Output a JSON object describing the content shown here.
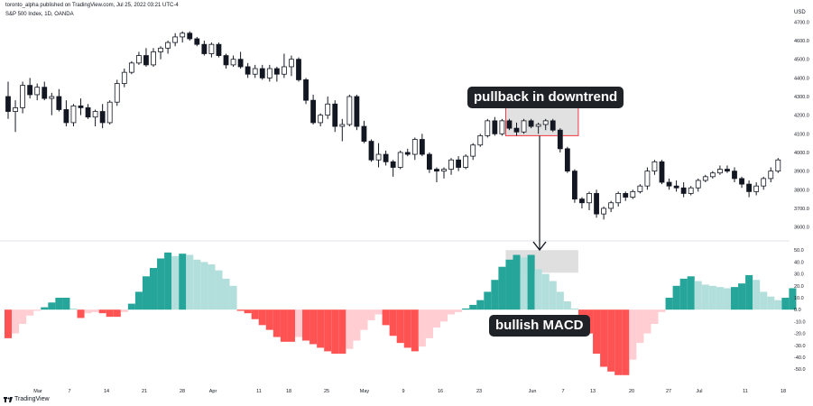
{
  "header": {
    "published": "toronto_alpha published on TradingView.com, Jul 25, 2022 03:21 UTC-4",
    "symbol": "S&P 500 Index, 1D, OANDA",
    "currency": "USD"
  },
  "annotations": {
    "pullback": "pullback in downtrend",
    "macd": "bullish MACD"
  },
  "footer": {
    "brand": "TradingView"
  },
  "colors": {
    "up_fill": "#ffffff",
    "down_fill": "#131722",
    "hist_pos_strong": "#26a69a",
    "hist_pos_weak": "#b2dfdb",
    "hist_neg_strong": "#ff5252",
    "hist_neg_weak": "#ffcdd2",
    "highlight_box": "#d4d4d4",
    "highlight_border": "#f23645"
  },
  "chart_data": [
    {
      "type": "candlestick",
      "title": "S&P 500 Index, 1D, OANDA",
      "y_axis": {
        "range": [
          3540,
          4760
        ],
        "ticks": [
          "4700.0",
          "4600.0",
          "4500.0",
          "4400.0",
          "4300.0",
          "4200.0",
          "4100.0",
          "4000.0",
          "3900.0",
          "3800.0",
          "3700.0",
          "3600.0"
        ],
        "unit": "USD"
      },
      "x_labels": [
        "Mar",
        "7",
        "14",
        "21",
        "28",
        "Apr",
        "11",
        "18",
        "25",
        "May",
        "9",
        "16",
        "23",
        "Jun",
        "7",
        "13",
        "20",
        "27",
        "Jul",
        "11",
        "18"
      ],
      "candles": [
        {
          "o": 4300,
          "h": 4380,
          "l": 4180,
          "c": 4220
        },
        {
          "o": 4220,
          "h": 4280,
          "l": 4110,
          "c": 4240
        },
        {
          "o": 4240,
          "h": 4380,
          "l": 4210,
          "c": 4360
        },
        {
          "o": 4360,
          "h": 4400,
          "l": 4290,
          "c": 4310
        },
        {
          "o": 4310,
          "h": 4370,
          "l": 4280,
          "c": 4350
        },
        {
          "o": 4350,
          "h": 4380,
          "l": 4280,
          "c": 4290
        },
        {
          "o": 4290,
          "h": 4320,
          "l": 4200,
          "c": 4300
        },
        {
          "o": 4300,
          "h": 4340,
          "l": 4220,
          "c": 4230
        },
        {
          "o": 4230,
          "h": 4280,
          "l": 4140,
          "c": 4160
        },
        {
          "o": 4160,
          "h": 4260,
          "l": 4140,
          "c": 4250
        },
        {
          "o": 4250,
          "h": 4290,
          "l": 4200,
          "c": 4240
        },
        {
          "o": 4240,
          "h": 4260,
          "l": 4180,
          "c": 4190
        },
        {
          "o": 4190,
          "h": 4230,
          "l": 4140,
          "c": 4220
        },
        {
          "o": 4220,
          "h": 4260,
          "l": 4130,
          "c": 4160
        },
        {
          "o": 4160,
          "h": 4280,
          "l": 4150,
          "c": 4270
        },
        {
          "o": 4270,
          "h": 4390,
          "l": 4250,
          "c": 4370
        },
        {
          "o": 4370,
          "h": 4450,
          "l": 4350,
          "c": 4430
        },
        {
          "o": 4430,
          "h": 4490,
          "l": 4420,
          "c": 4480
        },
        {
          "o": 4480,
          "h": 4540,
          "l": 4470,
          "c": 4520
        },
        {
          "o": 4520,
          "h": 4560,
          "l": 4460,
          "c": 4470
        },
        {
          "o": 4470,
          "h": 4560,
          "l": 4460,
          "c": 4540
        },
        {
          "o": 4540,
          "h": 4570,
          "l": 4500,
          "c": 4560
        },
        {
          "o": 4560,
          "h": 4600,
          "l": 4530,
          "c": 4590
        },
        {
          "o": 4590,
          "h": 4640,
          "l": 4570,
          "c": 4620
        },
        {
          "o": 4620,
          "h": 4650,
          "l": 4590,
          "c": 4640
        },
        {
          "o": 4640,
          "h": 4650,
          "l": 4600,
          "c": 4610
        },
        {
          "o": 4610,
          "h": 4620,
          "l": 4570,
          "c": 4580
        },
        {
          "o": 4580,
          "h": 4600,
          "l": 4520,
          "c": 4530
        },
        {
          "o": 4530,
          "h": 4590,
          "l": 4510,
          "c": 4580
        },
        {
          "o": 4580,
          "h": 4590,
          "l": 4510,
          "c": 4520
        },
        {
          "o": 4520,
          "h": 4530,
          "l": 4450,
          "c": 4470
        },
        {
          "o": 4470,
          "h": 4520,
          "l": 4460,
          "c": 4500
        },
        {
          "o": 4500,
          "h": 4540,
          "l": 4450,
          "c": 4460
        },
        {
          "o": 4460,
          "h": 4480,
          "l": 4400,
          "c": 4420
        },
        {
          "o": 4420,
          "h": 4470,
          "l": 4400,
          "c": 4450
        },
        {
          "o": 4450,
          "h": 4470,
          "l": 4390,
          "c": 4400
        },
        {
          "o": 4400,
          "h": 4470,
          "l": 4380,
          "c": 4450
        },
        {
          "o": 4450,
          "h": 4460,
          "l": 4380,
          "c": 4420
        },
        {
          "o": 4420,
          "h": 4530,
          "l": 4400,
          "c": 4460
        },
        {
          "o": 4460,
          "h": 4520,
          "l": 4410,
          "c": 4500
        },
        {
          "o": 4500,
          "h": 4510,
          "l": 4380,
          "c": 4390
        },
        {
          "o": 4390,
          "h": 4400,
          "l": 4260,
          "c": 4280
        },
        {
          "o": 4280,
          "h": 4310,
          "l": 4150,
          "c": 4160
        },
        {
          "o": 4160,
          "h": 4210,
          "l": 4140,
          "c": 4200
        },
        {
          "o": 4200,
          "h": 4300,
          "l": 4180,
          "c": 4260
        },
        {
          "o": 4260,
          "h": 4280,
          "l": 4110,
          "c": 4140
        },
        {
          "o": 4140,
          "h": 4180,
          "l": 4060,
          "c": 4150
        },
        {
          "o": 4150,
          "h": 4310,
          "l": 4140,
          "c": 4300
        },
        {
          "o": 4300,
          "h": 4310,
          "l": 4120,
          "c": 4140
        },
        {
          "o": 4140,
          "h": 4170,
          "l": 4050,
          "c": 4060
        },
        {
          "o": 4060,
          "h": 4070,
          "l": 3950,
          "c": 3960
        },
        {
          "o": 3960,
          "h": 4050,
          "l": 3920,
          "c": 3990
        },
        {
          "o": 3990,
          "h": 4010,
          "l": 3930,
          "c": 3950
        },
        {
          "o": 3950,
          "h": 3960,
          "l": 3870,
          "c": 3920
        },
        {
          "o": 3920,
          "h": 4010,
          "l": 3910,
          "c": 4000
        },
        {
          "o": 4000,
          "h": 4020,
          "l": 3980,
          "c": 3990
        },
        {
          "o": 3990,
          "h": 4080,
          "l": 3960,
          "c": 4070
        },
        {
          "o": 4070,
          "h": 4100,
          "l": 3980,
          "c": 3990
        },
        {
          "o": 3990,
          "h": 4000,
          "l": 3890,
          "c": 3910
        },
        {
          "o": 3910,
          "h": 3920,
          "l": 3840,
          "c": 3900
        },
        {
          "o": 3900,
          "h": 3920,
          "l": 3860,
          "c": 3910
        },
        {
          "o": 3910,
          "h": 3970,
          "l": 3880,
          "c": 3960
        },
        {
          "o": 3960,
          "h": 3980,
          "l": 3900,
          "c": 3920
        },
        {
          "o": 3920,
          "h": 3990,
          "l": 3910,
          "c": 3980
        },
        {
          "o": 3980,
          "h": 4050,
          "l": 3960,
          "c": 4040
        },
        {
          "o": 4040,
          "h": 4100,
          "l": 4030,
          "c": 4090
        },
        {
          "o": 4090,
          "h": 4180,
          "l": 4080,
          "c": 4170
        },
        {
          "o": 4170,
          "h": 4190,
          "l": 4090,
          "c": 4100
        },
        {
          "o": 4100,
          "h": 4180,
          "l": 4090,
          "c": 4170
        },
        {
          "o": 4170,
          "h": 4180,
          "l": 4120,
          "c": 4130
        },
        {
          "o": 4130,
          "h": 4160,
          "l": 4090,
          "c": 4110
        },
        {
          "o": 4110,
          "h": 4180,
          "l": 4100,
          "c": 4170
        },
        {
          "o": 4170,
          "h": 4180,
          "l": 4130,
          "c": 4140
        },
        {
          "o": 4140,
          "h": 4160,
          "l": 4100,
          "c": 4150
        },
        {
          "o": 4150,
          "h": 4180,
          "l": 4120,
          "c": 4170
        },
        {
          "o": 4170,
          "h": 4180,
          "l": 4110,
          "c": 4120
        },
        {
          "o": 4120,
          "h": 4130,
          "l": 4000,
          "c": 4020
        },
        {
          "o": 4020,
          "h": 4030,
          "l": 3890,
          "c": 3900
        },
        {
          "o": 3900,
          "h": 3910,
          "l": 3730,
          "c": 3750
        },
        {
          "o": 3750,
          "h": 3760,
          "l": 3700,
          "c": 3730
        },
        {
          "o": 3730,
          "h": 3790,
          "l": 3690,
          "c": 3780
        },
        {
          "o": 3780,
          "h": 3800,
          "l": 3650,
          "c": 3670
        },
        {
          "o": 3670,
          "h": 3710,
          "l": 3640,
          "c": 3700
        },
        {
          "o": 3700,
          "h": 3740,
          "l": 3680,
          "c": 3730
        },
        {
          "o": 3730,
          "h": 3790,
          "l": 3710,
          "c": 3780
        },
        {
          "o": 3780,
          "h": 3790,
          "l": 3740,
          "c": 3760
        },
        {
          "o": 3760,
          "h": 3800,
          "l": 3750,
          "c": 3790
        },
        {
          "o": 3790,
          "h": 3830,
          "l": 3780,
          "c": 3820
        },
        {
          "o": 3820,
          "h": 3920,
          "l": 3800,
          "c": 3900
        },
        {
          "o": 3900,
          "h": 3960,
          "l": 3880,
          "c": 3950
        },
        {
          "o": 3950,
          "h": 3960,
          "l": 3830,
          "c": 3840
        },
        {
          "o": 3840,
          "h": 3860,
          "l": 3800,
          "c": 3820
        },
        {
          "o": 3820,
          "h": 3850,
          "l": 3790,
          "c": 3810
        },
        {
          "o": 3810,
          "h": 3840,
          "l": 3760,
          "c": 3780
        },
        {
          "o": 3780,
          "h": 3820,
          "l": 3770,
          "c": 3810
        },
        {
          "o": 3810,
          "h": 3860,
          "l": 3790,
          "c": 3850
        },
        {
          "o": 3850,
          "h": 3880,
          "l": 3840,
          "c": 3870
        },
        {
          "o": 3870,
          "h": 3900,
          "l": 3860,
          "c": 3890
        },
        {
          "o": 3890,
          "h": 3930,
          "l": 3880,
          "c": 3910
        },
        {
          "o": 3910,
          "h": 3930,
          "l": 3890,
          "c": 3900
        },
        {
          "o": 3900,
          "h": 3920,
          "l": 3840,
          "c": 3860
        },
        {
          "o": 3860,
          "h": 3870,
          "l": 3810,
          "c": 3830
        },
        {
          "o": 3830,
          "h": 3850,
          "l": 3760,
          "c": 3790
        },
        {
          "o": 3790,
          "h": 3840,
          "l": 3770,
          "c": 3820
        },
        {
          "o": 3820,
          "h": 3870,
          "l": 3800,
          "c": 3860
        },
        {
          "o": 3860,
          "h": 3920,
          "l": 3840,
          "c": 3900
        },
        {
          "o": 3900,
          "h": 3970,
          "l": 3890,
          "c": 3960
        }
      ]
    },
    {
      "type": "histogram",
      "title": "MACD",
      "y_axis": {
        "range": [
          -62,
          57
        ],
        "ticks": [
          "50.0",
          "40.0",
          "30.0",
          "20.0",
          "10.0",
          "0.0",
          "-10.0",
          "-20.0",
          "-30.0",
          "-40.0",
          "-50.0"
        ]
      },
      "values": [
        -24,
        -20,
        -12,
        -5,
        -1,
        2,
        6,
        10,
        10,
        1,
        -7,
        -3,
        -2,
        -3,
        -6,
        -6,
        -2,
        5,
        15,
        28,
        35,
        43,
        48,
        45,
        47,
        46,
        42,
        40,
        38,
        33,
        26,
        20,
        -1,
        -3,
        -8,
        -13,
        -17,
        -23,
        -27,
        -27,
        -23,
        -26,
        -29,
        -32,
        -35,
        -37,
        -37,
        -33,
        -26,
        -17,
        -9,
        -4,
        -13,
        -22,
        -28,
        -32,
        -35,
        -31,
        -24,
        -15,
        -10,
        -4,
        -2,
        1,
        4,
        8,
        15,
        25,
        36,
        42,
        46,
        44,
        46,
        34,
        30,
        24,
        15,
        7,
        1,
        -5,
        -20,
        -37,
        -48,
        -52,
        -55,
        -55,
        -42,
        -28,
        -20,
        -12,
        -2,
        10,
        20,
        26,
        28,
        24,
        21,
        20,
        19,
        18,
        19,
        22,
        29,
        25,
        15,
        11,
        8,
        10,
        18
      ]
    }
  ]
}
